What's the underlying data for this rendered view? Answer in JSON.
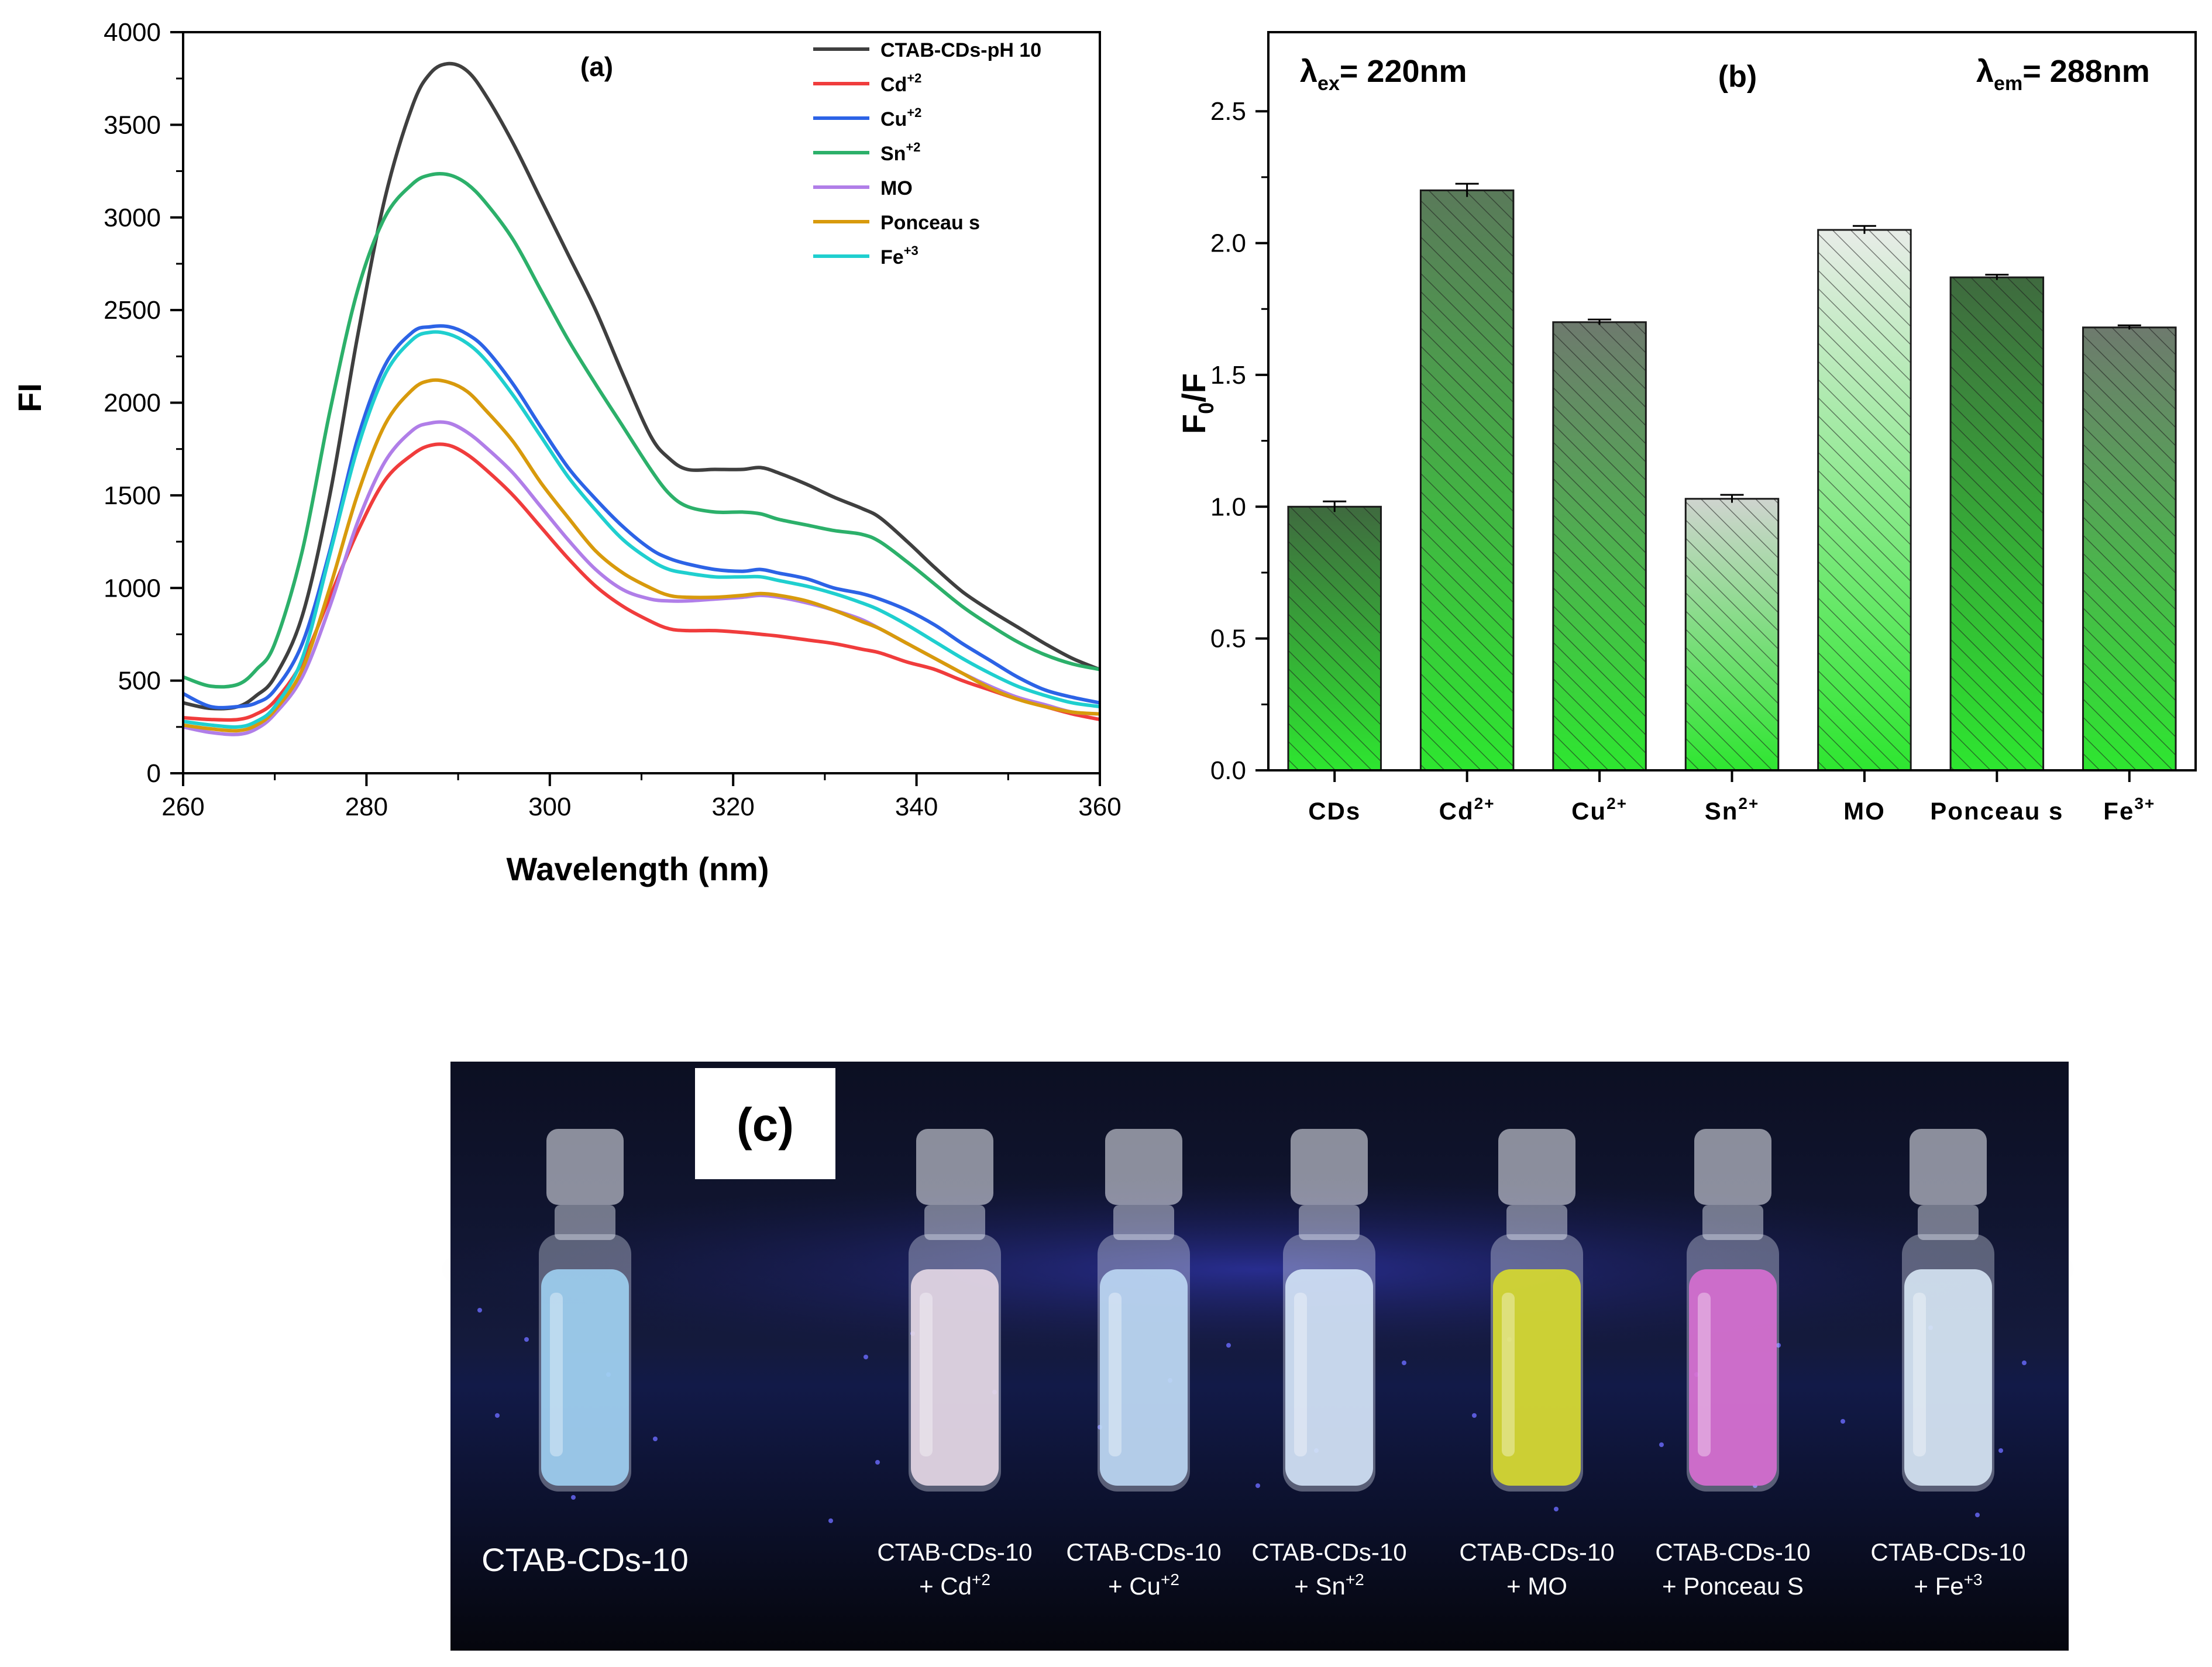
{
  "chart_data": [
    {
      "panel": "(a)",
      "type": "line",
      "xlabel": "Wavelength (nm)",
      "ylabel": "FI",
      "xlim": [
        260,
        360
      ],
      "ylim": [
        0,
        4000
      ],
      "xticks": [
        "260",
        "280",
        "300",
        "320",
        "340",
        "360"
      ],
      "yticks": [
        "0",
        "500",
        "1000",
        "1500",
        "2000",
        "2500",
        "3000",
        "3500",
        "4000"
      ],
      "legend_position": "top-right",
      "series": [
        {
          "name": "CTAB-CDs-pH 10",
          "color": "#3f3f3f",
          "x": [
            260,
            263,
            266,
            268,
            270,
            273,
            276,
            279,
            282,
            285,
            287,
            289,
            291,
            293,
            296,
            299,
            302,
            305,
            308,
            311,
            313,
            315,
            318,
            321,
            323,
            325,
            328,
            331,
            334,
            336,
            339,
            342,
            345,
            348,
            351,
            354,
            357,
            360
          ],
          "y": [
            380,
            350,
            360,
            420,
            520,
            850,
            1500,
            2350,
            3100,
            3600,
            3780,
            3830,
            3790,
            3660,
            3400,
            3100,
            2800,
            2500,
            2150,
            1820,
            1700,
            1640,
            1640,
            1640,
            1650,
            1620,
            1560,
            1490,
            1430,
            1380,
            1250,
            1110,
            980,
            880,
            790,
            700,
            620,
            560
          ]
        },
        {
          "name": "Cd+2",
          "color": "#f03c3c",
          "x": [
            260,
            263,
            266,
            268,
            270,
            273,
            276,
            279,
            282,
            285,
            287,
            289,
            291,
            293,
            296,
            299,
            302,
            305,
            308,
            311,
            313,
            315,
            318,
            321,
            323,
            325,
            328,
            331,
            334,
            336,
            339,
            342,
            345,
            348,
            351,
            354,
            357,
            360
          ],
          "y": [
            300,
            290,
            290,
            320,
            390,
            600,
            950,
            1300,
            1580,
            1720,
            1770,
            1770,
            1720,
            1640,
            1500,
            1330,
            1160,
            1010,
            900,
            820,
            780,
            770,
            770,
            760,
            750,
            740,
            720,
            700,
            670,
            650,
            600,
            560,
            500,
            450,
            400,
            360,
            320,
            290
          ]
        },
        {
          "name": "Cu+2",
          "color": "#2c63e6",
          "x": [
            260,
            263,
            266,
            268,
            270,
            273,
            276,
            279,
            282,
            285,
            287,
            289,
            291,
            293,
            296,
            299,
            302,
            305,
            308,
            311,
            313,
            315,
            318,
            321,
            323,
            325,
            328,
            331,
            334,
            336,
            339,
            342,
            345,
            348,
            351,
            354,
            357,
            360
          ],
          "y": [
            430,
            360,
            360,
            380,
            450,
            700,
            1200,
            1800,
            2200,
            2380,
            2410,
            2410,
            2370,
            2290,
            2100,
            1870,
            1650,
            1480,
            1330,
            1210,
            1160,
            1130,
            1100,
            1090,
            1100,
            1080,
            1050,
            1000,
            970,
            940,
            880,
            800,
            700,
            610,
            520,
            450,
            410,
            380
          ]
        },
        {
          "name": "Sn+2",
          "color": "#2cb06a",
          "x": [
            260,
            263,
            266,
            268,
            270,
            273,
            276,
            279,
            282,
            285,
            287,
            289,
            291,
            293,
            296,
            299,
            302,
            305,
            308,
            311,
            313,
            315,
            318,
            321,
            323,
            325,
            328,
            331,
            334,
            336,
            339,
            342,
            345,
            348,
            351,
            354,
            357,
            360
          ],
          "y": [
            520,
            470,
            480,
            560,
            700,
            1200,
            1950,
            2600,
            3000,
            3180,
            3230,
            3230,
            3180,
            3080,
            2880,
            2610,
            2340,
            2100,
            1870,
            1640,
            1510,
            1440,
            1410,
            1410,
            1400,
            1370,
            1340,
            1310,
            1290,
            1250,
            1140,
            1020,
            900,
            800,
            710,
            640,
            590,
            560
          ]
        },
        {
          "name": "MO",
          "color": "#b07ee8",
          "x": [
            260,
            263,
            266,
            268,
            270,
            273,
            276,
            279,
            282,
            285,
            287,
            289,
            291,
            293,
            296,
            299,
            302,
            305,
            308,
            311,
            313,
            315,
            318,
            321,
            323,
            325,
            328,
            331,
            334,
            336,
            339,
            342,
            345,
            348,
            351,
            354,
            357,
            360
          ],
          "y": [
            250,
            220,
            210,
            240,
            320,
            520,
            900,
            1350,
            1680,
            1850,
            1890,
            1890,
            1840,
            1760,
            1620,
            1440,
            1260,
            1100,
            990,
            940,
            930,
            930,
            940,
            950,
            960,
            950,
            920,
            880,
            830,
            780,
            700,
            620,
            540,
            470,
            410,
            370,
            330,
            320
          ]
        },
        {
          "name": "Ponceau s",
          "color": "#d89a0c",
          "x": [
            260,
            263,
            266,
            268,
            270,
            273,
            276,
            279,
            282,
            285,
            287,
            289,
            291,
            293,
            296,
            299,
            302,
            305,
            308,
            311,
            313,
            315,
            318,
            321,
            323,
            325,
            328,
            331,
            334,
            336,
            339,
            342,
            345,
            348,
            351,
            354,
            357,
            360
          ],
          "y": [
            260,
            240,
            230,
            260,
            340,
            560,
            1000,
            1500,
            1880,
            2070,
            2120,
            2110,
            2060,
            1960,
            1790,
            1570,
            1380,
            1200,
            1080,
            1000,
            960,
            950,
            950,
            960,
            970,
            960,
            930,
            880,
            820,
            780,
            700,
            620,
            540,
            460,
            400,
            360,
            330,
            320
          ]
        },
        {
          "name": "Fe+3",
          "color": "#1fcfcf",
          "x": [
            260,
            263,
            266,
            268,
            270,
            273,
            276,
            279,
            282,
            285,
            287,
            289,
            291,
            293,
            296,
            299,
            302,
            305,
            308,
            311,
            313,
            315,
            318,
            321,
            323,
            325,
            328,
            331,
            334,
            336,
            339,
            342,
            345,
            348,
            351,
            354,
            357,
            360
          ],
          "y": [
            280,
            260,
            250,
            280,
            360,
            620,
            1180,
            1750,
            2150,
            2340,
            2380,
            2370,
            2320,
            2230,
            2040,
            1820,
            1600,
            1420,
            1260,
            1150,
            1100,
            1080,
            1060,
            1060,
            1060,
            1040,
            1010,
            970,
            920,
            880,
            800,
            710,
            620,
            540,
            470,
            420,
            380,
            360
          ]
        }
      ]
    },
    {
      "panel": "(b)",
      "type": "bar",
      "ylabel": "F0/F",
      "ylim": [
        0,
        2.8
      ],
      "yticks": [
        "0.0",
        "0.5",
        "1.0",
        "1.5",
        "2.0",
        "2.5"
      ],
      "annotation_left": "λex= 220nm",
      "annotation_right": "λem= 288nm",
      "categories": [
        "CDs",
        "Cd2+",
        "Cu2+",
        "Sn2+",
        "MO",
        "Ponceau s",
        "Fe3+"
      ],
      "values": [
        1.0,
        2.2,
        1.7,
        1.03,
        2.05,
        1.87,
        1.68
      ],
      "errors": [
        0.02,
        0.025,
        0.01,
        0.015,
        0.015,
        0.01,
        0.008
      ],
      "bar_tints": [
        "dark",
        "medium",
        "gray",
        "light",
        "lighter",
        "dark",
        "gray"
      ],
      "colors": {
        "bar_top_dark": "#3e6b3e",
        "bar_bottom": "#2ee630"
      }
    }
  ],
  "labels": {
    "panel_a": "(a)",
    "panel_b": "(b)",
    "panel_c": "(c)",
    "xlabel_a": "Wavelength (nm)",
    "ylabel_a": "FI",
    "ylabel_b_main": "F",
    "ylabel_b_sub": "0",
    "ylabel_b_tail": "/F",
    "lambda": "λ",
    "ex_sub": "ex",
    "ex_val": "= 220nm",
    "em_sub": "em",
    "em_val": "= 288nm"
  },
  "legend_a": [
    {
      "base": "CTAB-CDs-pH 10",
      "sup": ""
    },
    {
      "base": "Cd",
      "sup": "+2"
    },
    {
      "base": "Cu",
      "sup": "+2"
    },
    {
      "base": "Sn",
      "sup": "+2"
    },
    {
      "base": "MO",
      "sup": ""
    },
    {
      "base": "Ponceau s",
      "sup": ""
    },
    {
      "base": "Fe",
      "sup": "+3"
    }
  ],
  "bar_tick_labels": [
    {
      "base": "CDs",
      "sup": ""
    },
    {
      "base": "Cd",
      "sup": "2+"
    },
    {
      "base": "Cu",
      "sup": "2+"
    },
    {
      "base": "Sn",
      "sup": "2+"
    },
    {
      "base": "MO",
      "sup": ""
    },
    {
      "base": "Ponceau s",
      "sup": ""
    },
    {
      "base": "Fe",
      "sup": "3+"
    }
  ],
  "photo": {
    "vials": [
      {
        "line1": "CTAB-CDs-10",
        "line2": "",
        "sup": "",
        "liquid": "#9fd0f2"
      },
      {
        "line1": "CTAB-CDs-10",
        "line2": "+ Cd",
        "sup": "+2",
        "liquid": "#e6d8e6"
      },
      {
        "line1": "CTAB-CDs-10",
        "line2": "+ Cu",
        "sup": "+2",
        "liquid": "#bcd8f4"
      },
      {
        "line1": "CTAB-CDs-10",
        "line2": "+ Sn",
        "sup": "+2",
        "liquid": "#d2e2f6"
      },
      {
        "line1": "CTAB-CDs-10",
        "line2": "+ MO",
        "sup": "",
        "liquid": "#d8dc2c"
      },
      {
        "line1": "CTAB-CDs-10",
        "line2": "+ Ponceau S",
        "sup": "",
        "liquid": "#d86ed2"
      },
      {
        "line1": "CTAB-CDs-10",
        "line2": "+ Fe",
        "sup": "+3",
        "liquid": "#d6e6f4"
      }
    ]
  }
}
